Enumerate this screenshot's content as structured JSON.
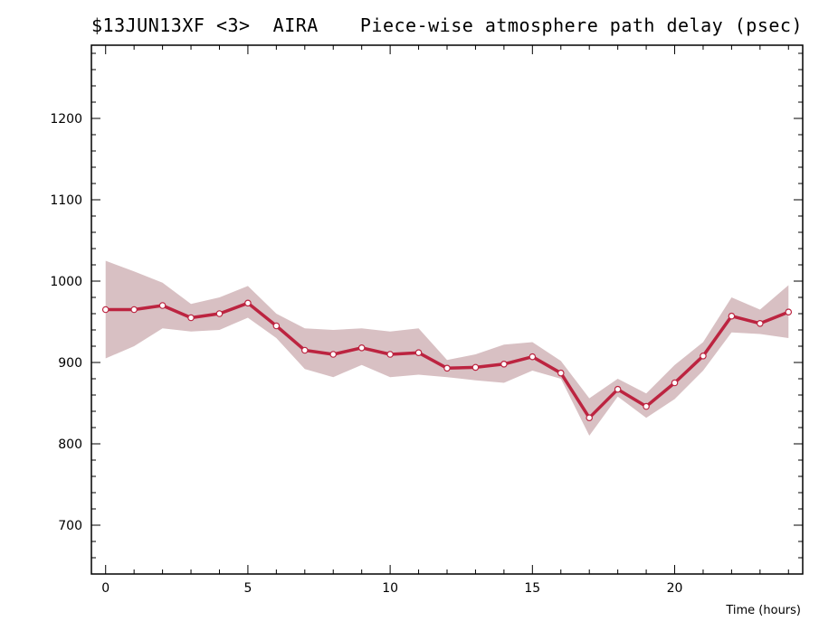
{
  "chart_data": {
    "type": "line",
    "title_left": "$13JUN13XF <3>  AIRA",
    "title_right": "Piece-wise atmosphere path delay (psec)",
    "xlabel": "Time (hours)",
    "ylabel": "",
    "xlim": [
      -0.5,
      24.5
    ],
    "ylim": [
      640,
      1290
    ],
    "x_ticks": [
      0,
      5,
      10,
      15,
      20
    ],
    "y_ticks": [
      700,
      800,
      900,
      1000,
      1100,
      1200
    ],
    "grid": false,
    "series": [
      {
        "x": [
          0,
          1,
          2,
          3,
          4,
          5,
          6,
          7,
          8,
          9,
          10,
          11,
          12,
          13,
          14,
          15,
          16,
          17,
          18,
          19,
          20,
          21,
          22,
          23,
          24
        ],
        "values": [
          965,
          965,
          970,
          955,
          960,
          973,
          945,
          915,
          910,
          918,
          910,
          912,
          893,
          894,
          898,
          907,
          887,
          832,
          867,
          846,
          875,
          908,
          957,
          948,
          962
        ],
        "band_upper": [
          1025,
          1012,
          998,
          972,
          980,
          994,
          960,
          942,
          940,
          942,
          938,
          942,
          903,
          910,
          922,
          925,
          902,
          856,
          880,
          862,
          897,
          925,
          980,
          965,
          995
        ],
        "band_lower": [
          905,
          920,
          942,
          938,
          940,
          955,
          930,
          892,
          882,
          897,
          882,
          885,
          882,
          878,
          875,
          890,
          880,
          810,
          858,
          832,
          855,
          890,
          937,
          935,
          930
        ]
      }
    ],
    "colors": {
      "line": "#bc2440",
      "band": "#d8c0c3",
      "marker_fill": "#ffffff"
    }
  }
}
